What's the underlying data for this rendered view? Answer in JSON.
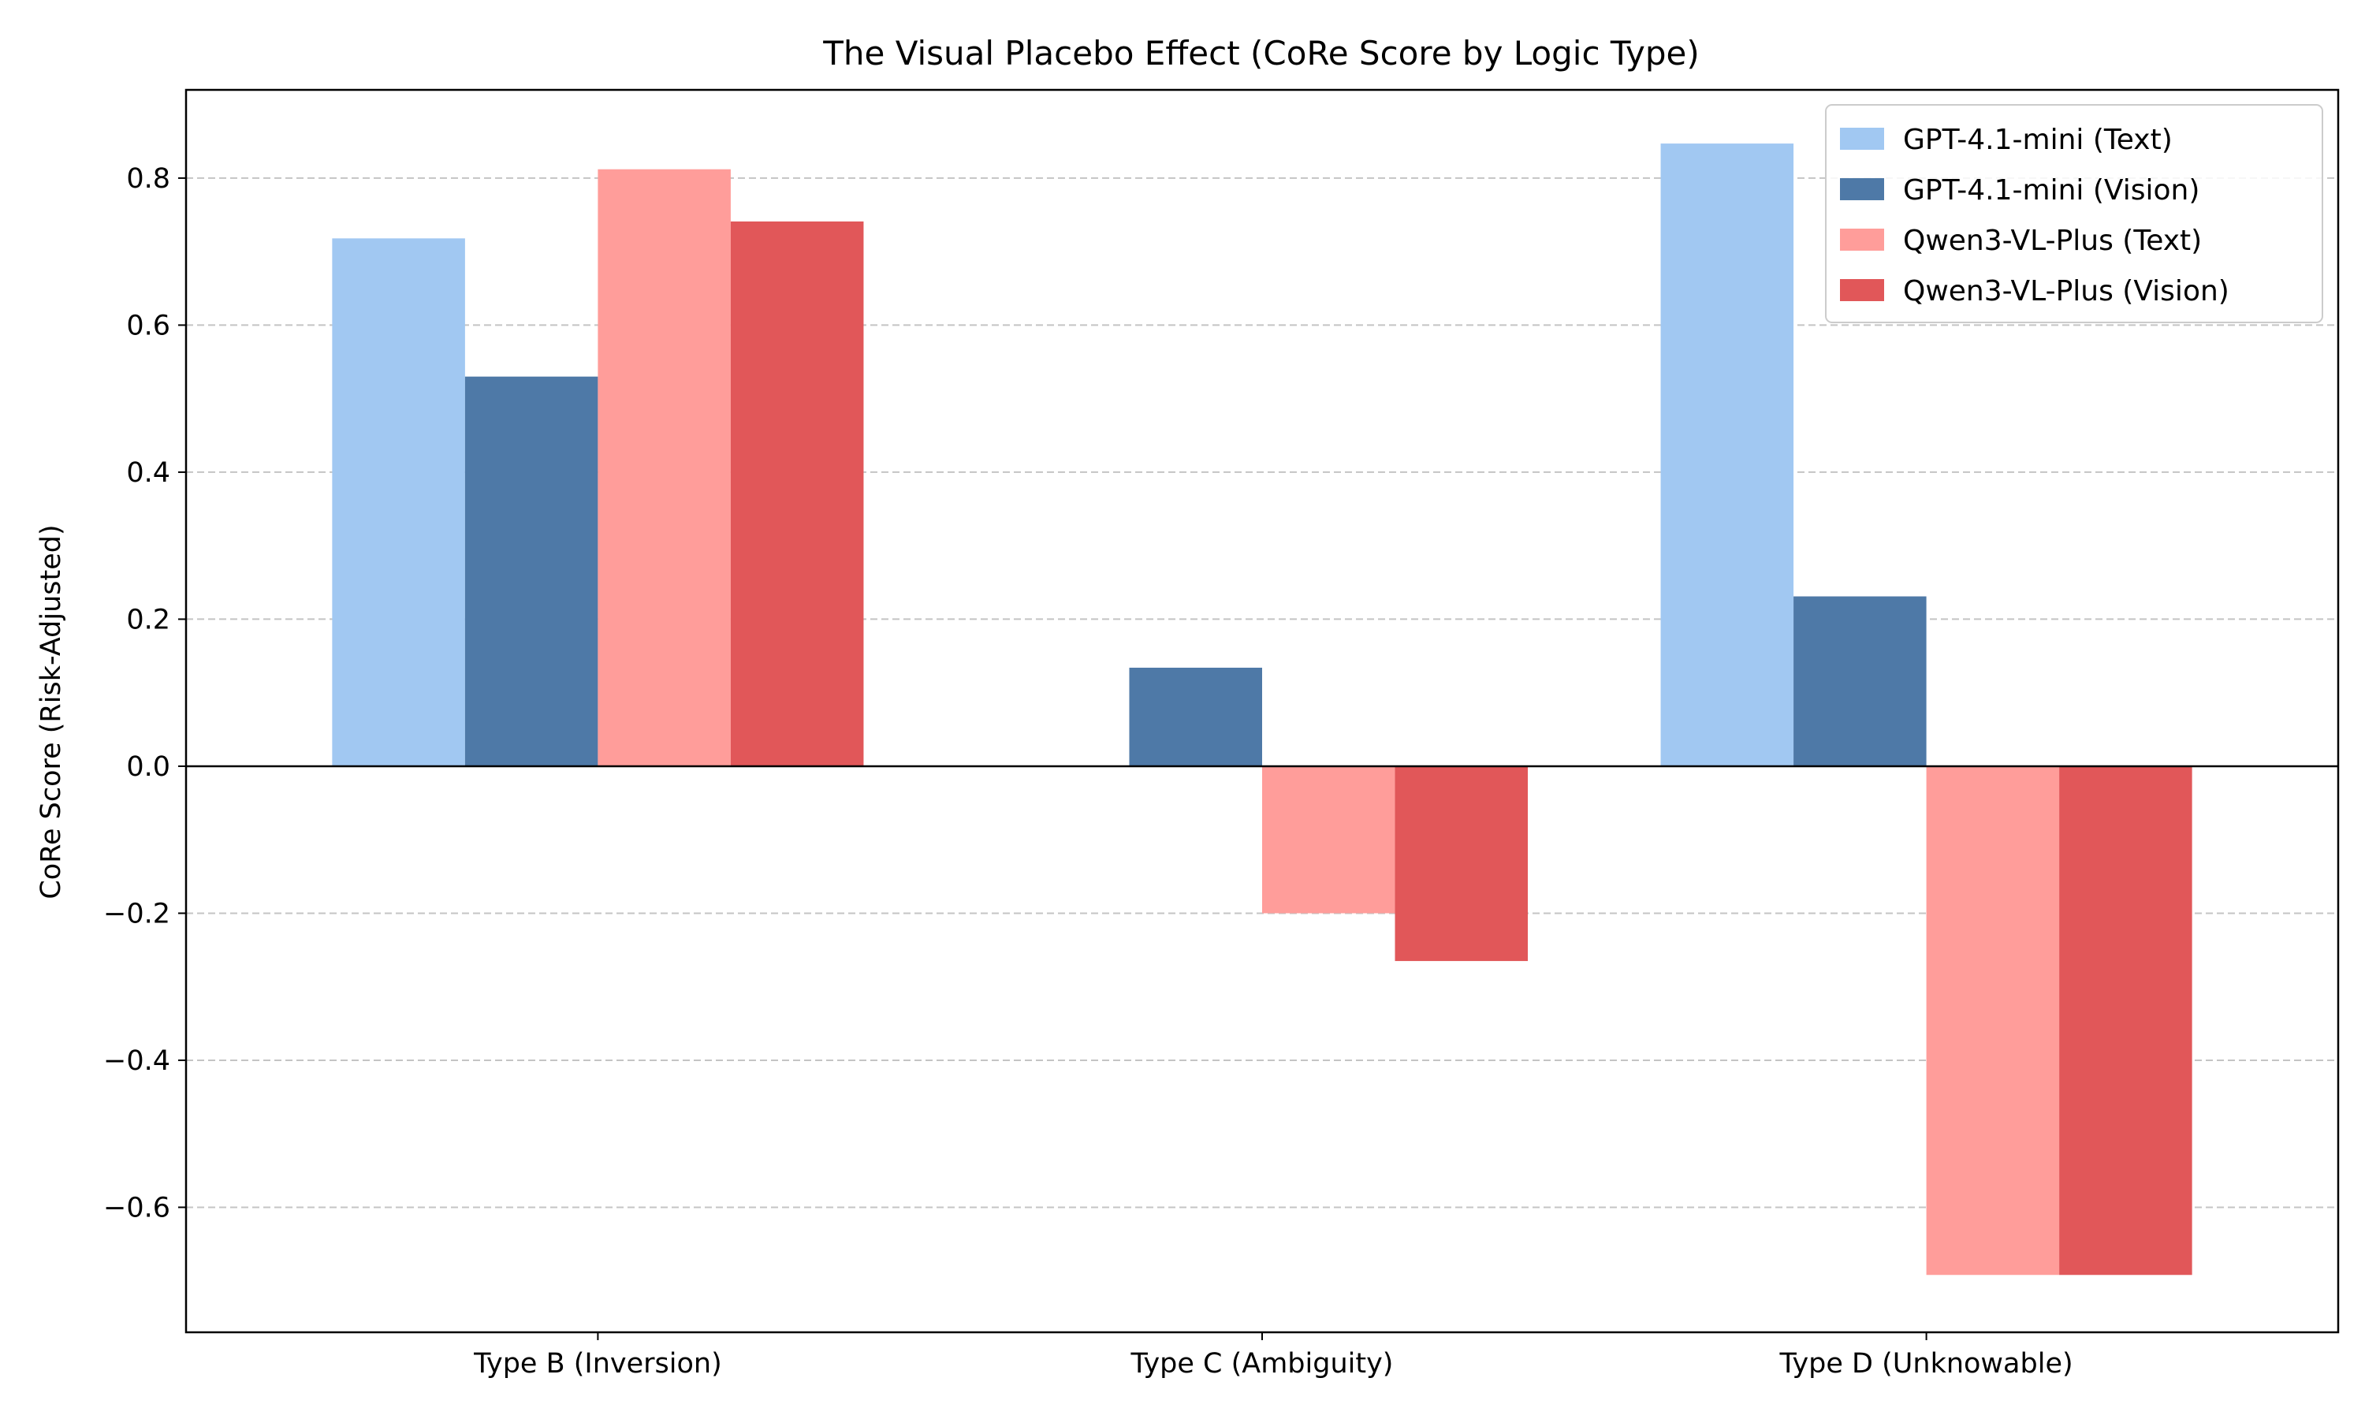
{
  "chart_data": {
    "type": "bar",
    "title": "The Visual Placebo Effect (CoRe Score by Logic Type)",
    "xlabel": "",
    "ylabel": "CoRe Score (Risk-Adjusted)",
    "categories": [
      "Type B (Inversion)",
      "Type C (Ambiguity)",
      "Type D (Unknowable)"
    ],
    "series": [
      {
        "name": "GPT-4.1-mini (Text)",
        "color": "#a1c8f2",
        "values": [
          0.718,
          0.0,
          0.847
        ]
      },
      {
        "name": "GPT-4.1-mini (Vision)",
        "color": "#4e79a7",
        "values": [
          0.53,
          0.134,
          0.231
        ]
      },
      {
        "name": "Qwen3-VL-Plus (Text)",
        "color": "#ff9d9a",
        "values": [
          0.812,
          -0.2,
          -0.692
        ]
      },
      {
        "name": "Qwen3-VL-Plus (Vision)",
        "color": "#e15759",
        "values": [
          0.741,
          -0.265,
          -0.692
        ]
      }
    ],
    "ylim": [
      -0.77,
      0.92
    ],
    "yticks": [
      -0.6,
      -0.4,
      -0.2,
      0.0,
      0.2,
      0.4,
      0.6,
      0.8
    ],
    "ytick_labels": [
      "−0.6",
      "−0.4",
      "−0.2",
      "0.0",
      "0.2",
      "0.4",
      "0.6",
      "0.8"
    ],
    "grid": "y-dashed",
    "legend_position": "top-right"
  }
}
